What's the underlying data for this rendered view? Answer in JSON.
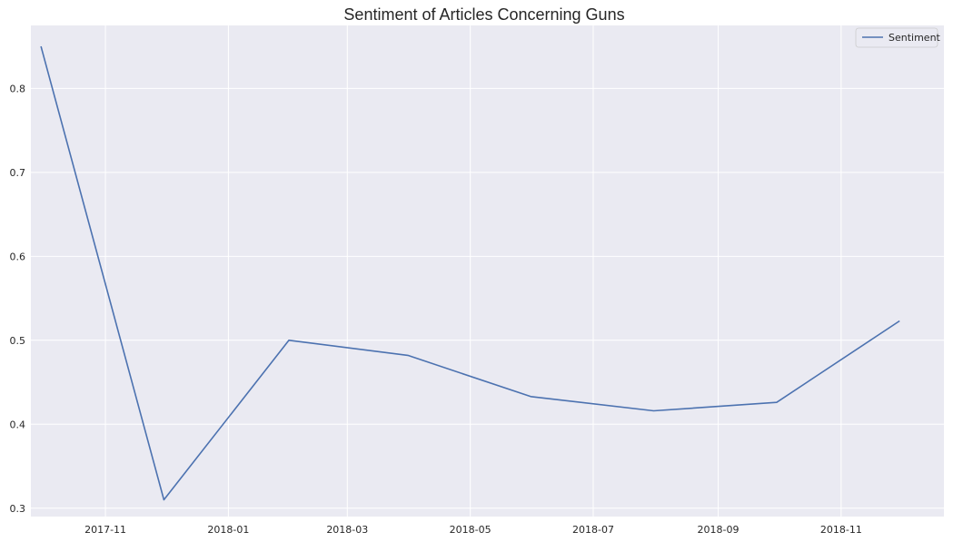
{
  "chart_data": {
    "type": "line",
    "title": "Sentiment of Articles Concerning Guns",
    "xlabel": "",
    "ylabel": "",
    "x_type": "date",
    "x_ticks": [
      "2017-11",
      "2018-01",
      "2018-03",
      "2018-05",
      "2018-07",
      "2018-09",
      "2018-11"
    ],
    "y_ticks": [
      "0.3",
      "0.4",
      "0.5",
      "0.6",
      "0.7",
      "0.8"
    ],
    "xlim": [
      "2017-09-25",
      "2018-12-22"
    ],
    "ylim": [
      0.29,
      0.875
    ],
    "grid": true,
    "legend_position": "top-right",
    "colors": {
      "background": "#eaeaf2",
      "grid": "#ffffff",
      "line": "#4c72b0"
    },
    "series": [
      {
        "name": "Sentiment",
        "x": [
          "2017-09-30",
          "2017-11-30",
          "2018-01-31",
          "2018-03-31",
          "2018-05-31",
          "2018-07-31",
          "2018-09-30",
          "2018-11-30"
        ],
        "y": [
          0.85,
          0.31,
          0.5,
          0.482,
          0.433,
          0.416,
          0.426,
          0.523
        ]
      }
    ]
  }
}
